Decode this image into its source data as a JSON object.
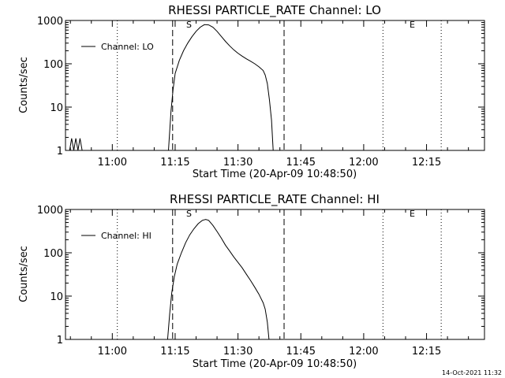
{
  "footer": {
    "timestamp": "14-Oct-2021 11:32"
  },
  "chart_data": [
    {
      "type": "line",
      "title": "RHESSI PARTICLE_RATE Channel: LO",
      "xlabel": "Start Time (20-Apr-09 10:48:50)",
      "ylabel": "Counts/sec",
      "yscale": "log",
      "ylim": [
        1,
        1000
      ],
      "xlim_minutes": [
        48.83,
        148.83
      ],
      "x_tick_labels": [
        "11:00",
        "11:15",
        "11:30",
        "11:45",
        "12:00",
        "12:15"
      ],
      "x_tick_minutes": [
        60,
        75,
        90,
        105,
        120,
        135
      ],
      "y_tick_labels": [
        "1",
        "10",
        "100",
        "1000"
      ],
      "y_tick_values": [
        1,
        10,
        100,
        1000
      ],
      "legend": {
        "label": "Channel: LO",
        "placement": "top-left"
      },
      "markers": {
        "start_label": "S",
        "end_label": "E"
      },
      "dashed_lines_minutes": [
        74.4,
        101.0
      ],
      "dotted_lines_minutes": [
        61.2,
        124.6,
        138.5
      ],
      "series": [
        {
          "name": "Channel: LO",
          "segments": [
            [
              [
                49.8,
                1
              ],
              [
                50.3,
                1.9
              ],
              [
                50.8,
                1
              ],
              [
                51.3,
                1.9
              ],
              [
                51.8,
                1
              ],
              [
                52.3,
                1.9
              ],
              [
                52.8,
                1
              ]
            ],
            [
              [
                73.4,
                1
              ],
              [
                74.0,
                8
              ],
              [
                74.5,
                25
              ],
              [
                75.0,
                60
              ],
              [
                76.0,
                120
              ],
              [
                77.0,
                200
              ],
              [
                78.0,
                300
              ],
              [
                79.0,
                420
              ],
              [
                80.0,
                560
              ],
              [
                81.0,
                700
              ],
              [
                82.0,
                800
              ],
              [
                83.0,
                790
              ],
              [
                84.0,
                700
              ],
              [
                85.0,
                560
              ],
              [
                86.0,
                430
              ],
              [
                87.0,
                330
              ],
              [
                88.0,
                260
              ],
              [
                89.0,
                210
              ],
              [
                90.0,
                175
              ],
              [
                91.0,
                150
              ],
              [
                92.0,
                130
              ],
              [
                93.0,
                115
              ],
              [
                94.0,
                100
              ],
              [
                95.0,
                85
              ],
              [
                96.0,
                70
              ],
              [
                96.5,
                55
              ],
              [
                97.0,
                35
              ],
              [
                97.5,
                15
              ],
              [
                98.0,
                5
              ],
              [
                98.4,
                1
              ]
            ]
          ]
        }
      ]
    },
    {
      "type": "line",
      "title": "RHESSI PARTICLE_RATE Channel: HI",
      "xlabel": "Start Time (20-Apr-09 10:48:50)",
      "ylabel": "Counts/sec",
      "yscale": "log",
      "ylim": [
        1,
        1000
      ],
      "xlim_minutes": [
        48.83,
        148.83
      ],
      "x_tick_labels": [
        "11:00",
        "11:15",
        "11:30",
        "11:45",
        "12:00",
        "12:15"
      ],
      "x_tick_minutes": [
        60,
        75,
        90,
        105,
        120,
        135
      ],
      "y_tick_labels": [
        "1",
        "10",
        "100",
        "1000"
      ],
      "y_tick_values": [
        1,
        10,
        100,
        1000
      ],
      "legend": {
        "label": "Channel: HI",
        "placement": "top-left"
      },
      "markers": {
        "start_label": "S",
        "end_label": "E"
      },
      "dashed_lines_minutes": [
        74.4,
        101.0
      ],
      "dotted_lines_minutes": [
        61.2,
        124.6,
        138.5
      ],
      "series": [
        {
          "name": "Channel: HI",
          "segments": [
            [
              [
                73.2,
                1
              ],
              [
                73.7,
                4
              ],
              [
                74.2,
                12
              ],
              [
                74.8,
                28
              ],
              [
                75.5,
                55
              ],
              [
                76.5,
                100
              ],
              [
                77.5,
                170
              ],
              [
                78.5,
                260
              ],
              [
                79.5,
                360
              ],
              [
                80.5,
                470
              ],
              [
                81.5,
                560
              ],
              [
                82.3,
                590
              ],
              [
                83.0,
                560
              ],
              [
                84.0,
                430
              ],
              [
                85.0,
                310
              ],
              [
                86.0,
                220
              ],
              [
                87.0,
                150
              ],
              [
                88.0,
                110
              ],
              [
                89.0,
                80
              ],
              [
                90.0,
                60
              ],
              [
                91.0,
                45
              ],
              [
                92.0,
                32
              ],
              [
                93.0,
                23
              ],
              [
                94.0,
                16
              ],
              [
                95.0,
                11
              ],
              [
                96.0,
                7
              ],
              [
                96.5,
                5
              ],
              [
                97.0,
                2.5
              ],
              [
                97.4,
                1
              ]
            ]
          ]
        }
      ]
    }
  ]
}
